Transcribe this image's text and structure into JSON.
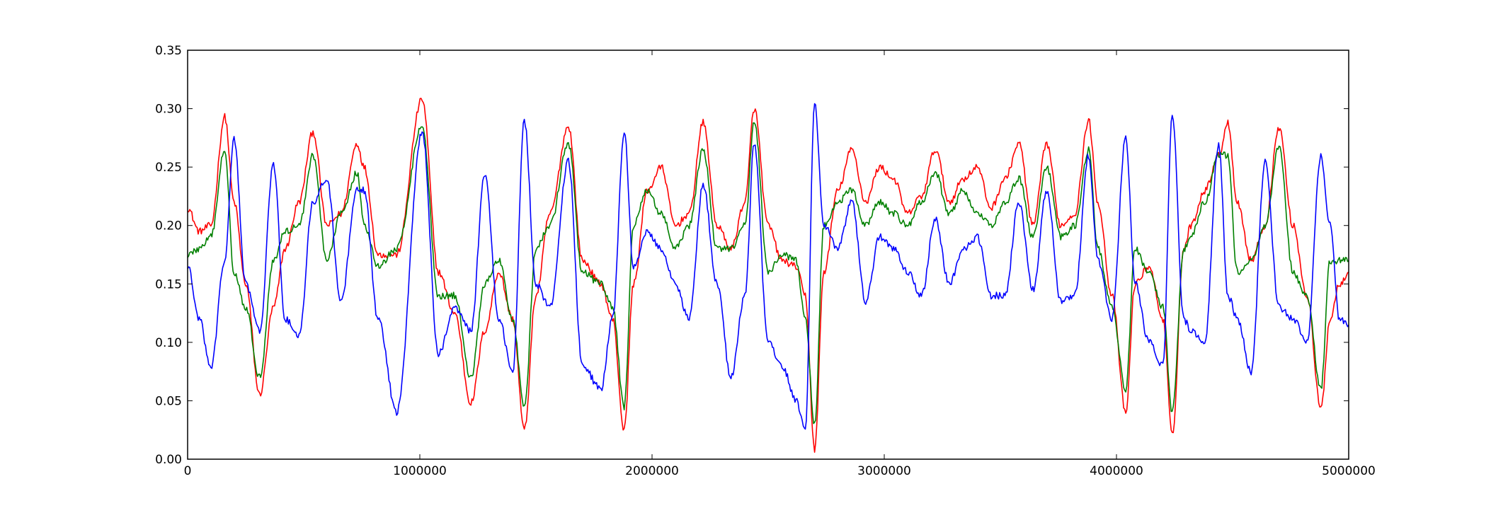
{
  "chart_data": {
    "type": "line",
    "title": "",
    "xlabel": "",
    "ylabel": "",
    "xlim": [
      0,
      5000000
    ],
    "ylim": [
      0,
      0.35
    ],
    "grid": false,
    "legend": "none",
    "x_ticks": [
      0,
      1000000,
      2000000,
      3000000,
      4000000,
      5000000
    ],
    "x_tick_labels": [
      "0",
      "1000000",
      "2000000",
      "3000000",
      "4000000",
      "5000000"
    ],
    "y_ticks": [
      0,
      0.05,
      0.1,
      0.15,
      0.2,
      0.25,
      0.3,
      0.35
    ],
    "y_tick_labels": [
      "0.00",
      "0.05",
      "0.10",
      "0.15",
      "0.20",
      "0.25",
      "0.30",
      "0.35"
    ],
    "x": [
      0,
      50000,
      100000,
      160000,
      200000,
      250000,
      310000,
      370000,
      420000,
      480000,
      540000,
      600000,
      660000,
      730000,
      760000,
      820000,
      900000,
      1010000,
      1080000,
      1150000,
      1220000,
      1280000,
      1340000,
      1400000,
      1450000,
      1500000,
      1560000,
      1640000,
      1700000,
      1780000,
      1830000,
      1880000,
      1920000,
      1980000,
      2040000,
      2100000,
      2160000,
      2220000,
      2280000,
      2340000,
      2400000,
      2440000,
      2500000,
      2560000,
      2620000,
      2660000,
      2700000,
      2740000,
      2800000,
      2860000,
      2920000,
      2980000,
      3040000,
      3100000,
      3160000,
      3220000,
      3280000,
      3340000,
      3400000,
      3460000,
      3520000,
      3580000,
      3640000,
      3700000,
      3760000,
      3820000,
      3880000,
      3920000,
      3980000,
      4040000,
      4080000,
      4140000,
      4200000,
      4240000,
      4290000,
      4320000,
      4380000,
      4440000,
      4480000,
      4520000,
      4580000,
      4640000,
      4700000,
      4760000,
      4820000,
      4880000,
      4920000,
      4960000,
      5000000
    ],
    "series": [
      {
        "color": "#ff0000",
        "values": [
          0.215,
          0.195,
          0.2,
          0.293,
          0.22,
          0.15,
          0.055,
          0.13,
          0.18,
          0.22,
          0.28,
          0.2,
          0.21,
          0.27,
          0.25,
          0.175,
          0.175,
          0.308,
          0.16,
          0.125,
          0.048,
          0.11,
          0.16,
          0.12,
          0.025,
          0.14,
          0.21,
          0.285,
          0.17,
          0.15,
          0.12,
          0.025,
          0.15,
          0.23,
          0.25,
          0.2,
          0.21,
          0.288,
          0.2,
          0.18,
          0.22,
          0.3,
          0.2,
          0.17,
          0.165,
          0.14,
          0.008,
          0.16,
          0.23,
          0.265,
          0.22,
          0.25,
          0.24,
          0.21,
          0.225,
          0.265,
          0.22,
          0.24,
          0.25,
          0.215,
          0.24,
          0.27,
          0.2,
          0.27,
          0.2,
          0.21,
          0.29,
          0.22,
          0.14,
          0.04,
          0.15,
          0.165,
          0.12,
          0.02,
          0.18,
          0.2,
          0.23,
          0.26,
          0.288,
          0.22,
          0.17,
          0.2,
          0.284,
          0.2,
          0.14,
          0.043,
          0.12,
          0.15,
          0.16
        ]
      },
      {
        "color": "#008000",
        "values": [
          0.175,
          0.18,
          0.19,
          0.265,
          0.16,
          0.13,
          0.07,
          0.17,
          0.195,
          0.2,
          0.26,
          0.17,
          0.21,
          0.245,
          0.2,
          0.165,
          0.18,
          0.285,
          0.14,
          0.14,
          0.07,
          0.15,
          0.17,
          0.12,
          0.045,
          0.18,
          0.2,
          0.27,
          0.16,
          0.15,
          0.13,
          0.045,
          0.2,
          0.23,
          0.21,
          0.18,
          0.2,
          0.265,
          0.18,
          0.18,
          0.2,
          0.29,
          0.16,
          0.175,
          0.17,
          0.12,
          0.03,
          0.2,
          0.22,
          0.23,
          0.2,
          0.22,
          0.21,
          0.2,
          0.22,
          0.245,
          0.21,
          0.23,
          0.21,
          0.2,
          0.22,
          0.24,
          0.19,
          0.25,
          0.19,
          0.2,
          0.265,
          0.18,
          0.13,
          0.06,
          0.18,
          0.16,
          0.13,
          0.04,
          0.18,
          0.19,
          0.22,
          0.26,
          0.26,
          0.16,
          0.17,
          0.2,
          0.268,
          0.16,
          0.14,
          0.06,
          0.17,
          0.17,
          0.17
        ]
      },
      {
        "color": "#0000ff",
        "values": [
          0.165,
          0.12,
          0.078,
          0.17,
          0.275,
          0.15,
          0.11,
          0.252,
          0.12,
          0.105,
          0.22,
          0.24,
          0.135,
          0.23,
          0.23,
          0.12,
          0.04,
          0.28,
          0.09,
          0.13,
          0.11,
          0.245,
          0.12,
          0.075,
          0.29,
          0.15,
          0.13,
          0.255,
          0.08,
          0.06,
          0.12,
          0.28,
          0.165,
          0.195,
          0.18,
          0.15,
          0.12,
          0.235,
          0.15,
          0.07,
          0.14,
          0.27,
          0.1,
          0.08,
          0.05,
          0.025,
          0.305,
          0.2,
          0.18,
          0.22,
          0.135,
          0.19,
          0.18,
          0.16,
          0.14,
          0.205,
          0.15,
          0.18,
          0.19,
          0.14,
          0.14,
          0.22,
          0.145,
          0.23,
          0.135,
          0.14,
          0.26,
          0.17,
          0.12,
          0.275,
          0.15,
          0.1,
          0.08,
          0.295,
          0.12,
          0.11,
          0.1,
          0.27,
          0.14,
          0.12,
          0.075,
          0.255,
          0.13,
          0.12,
          0.1,
          0.26,
          0.2,
          0.12,
          0.115
        ]
      }
    ]
  }
}
